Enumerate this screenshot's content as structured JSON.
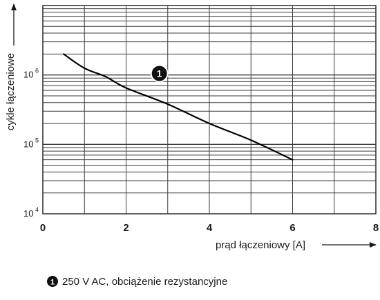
{
  "chart_data": {
    "type": "line",
    "ylabel": "cykle łączeniowe",
    "xlabel": "prąd łączeniowy [A]",
    "xlim": [
      0,
      8
    ],
    "ylim": [
      10000,
      10000000
    ],
    "y_scale": "log",
    "grid": true,
    "x_ticks": [
      {
        "value": 0,
        "label": "0"
      },
      {
        "value": 2,
        "label": "2"
      },
      {
        "value": 4,
        "label": "4"
      },
      {
        "value": 6,
        "label": "6"
      },
      {
        "value": 8,
        "label": "8"
      }
    ],
    "y_ticks": [
      {
        "value": 10000,
        "base": "10",
        "exp": "4"
      },
      {
        "value": 100000,
        "base": "10",
        "exp": "5"
      },
      {
        "value": 1000000,
        "base": "10",
        "exp": "6"
      }
    ],
    "series": [
      {
        "marker": "1",
        "color": "#000000",
        "points": [
          [
            0.5,
            2000000
          ],
          [
            1.0,
            1250000
          ],
          [
            1.5,
            950000
          ],
          [
            2.0,
            650000
          ],
          [
            3.0,
            380000
          ],
          [
            4.0,
            200000
          ],
          [
            5.0,
            115000
          ],
          [
            6.0,
            60000
          ]
        ]
      }
    ],
    "annotation": {
      "marker": "1",
      "x": 2.8,
      "y": 1050000
    },
    "legend": {
      "marker": "1",
      "text": "250 V AC, obciążenie rezystancyjne"
    }
  }
}
